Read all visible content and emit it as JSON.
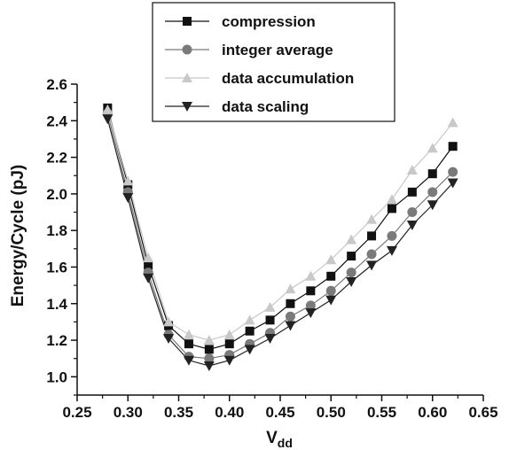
{
  "chart_data": {
    "type": "line",
    "title": "",
    "xlabel": "V",
    "xlabel_sub": "dd",
    "ylabel": "Energy/Cycle (pJ)",
    "xlim": [
      0.25,
      0.65
    ],
    "ylim": [
      0.9,
      2.6
    ],
    "x_ticks": [
      0.25,
      0.3,
      0.35,
      0.4,
      0.45,
      0.5,
      0.55,
      0.6,
      0.65
    ],
    "x_tick_labels": [
      "0.25",
      "0.30",
      "0.35",
      "0.40",
      "0.45",
      "0.50",
      "0.55",
      "0.60",
      "0.65"
    ],
    "y_ticks": [
      1.0,
      1.2,
      1.4,
      1.6,
      1.8,
      2.0,
      2.2,
      2.4,
      2.6
    ],
    "y_tick_labels": [
      "1.0",
      "1.2",
      "1.4",
      "1.6",
      "1.8",
      "2.0",
      "2.2",
      "2.4",
      "2.6"
    ],
    "grid": false,
    "legend_position": "top-center",
    "x": [
      0.28,
      0.3,
      0.32,
      0.34,
      0.36,
      0.38,
      0.4,
      0.42,
      0.44,
      0.46,
      0.48,
      0.5,
      0.52,
      0.54,
      0.56,
      0.58,
      0.6,
      0.62
    ],
    "series": [
      {
        "name": "compression",
        "marker": "square",
        "color": "#111111",
        "values": [
          2.47,
          2.05,
          1.61,
          1.28,
          1.18,
          1.15,
          1.18,
          1.25,
          1.31,
          1.4,
          1.47,
          1.55,
          1.66,
          1.77,
          1.92,
          2.01,
          2.11,
          2.26
        ]
      },
      {
        "name": "integer average",
        "marker": "circle",
        "color": "#7a7a7a",
        "values": [
          2.44,
          2.01,
          1.57,
          1.23,
          1.11,
          1.1,
          1.12,
          1.18,
          1.24,
          1.33,
          1.39,
          1.47,
          1.57,
          1.67,
          1.77,
          1.9,
          2.01,
          2.12
        ]
      },
      {
        "name": "data accumulation",
        "marker": "triangle-up",
        "color": "#c8c8c8",
        "values": [
          2.46,
          2.07,
          1.65,
          1.3,
          1.23,
          1.2,
          1.23,
          1.31,
          1.38,
          1.48,
          1.55,
          1.64,
          1.75,
          1.86,
          1.97,
          2.13,
          2.25,
          2.39
        ]
      },
      {
        "name": "data scaling",
        "marker": "triangle-down",
        "color": "#222222",
        "values": [
          2.41,
          1.98,
          1.54,
          1.21,
          1.09,
          1.06,
          1.09,
          1.15,
          1.21,
          1.28,
          1.35,
          1.42,
          1.52,
          1.61,
          1.69,
          1.83,
          1.94,
          2.06
        ]
      }
    ]
  }
}
